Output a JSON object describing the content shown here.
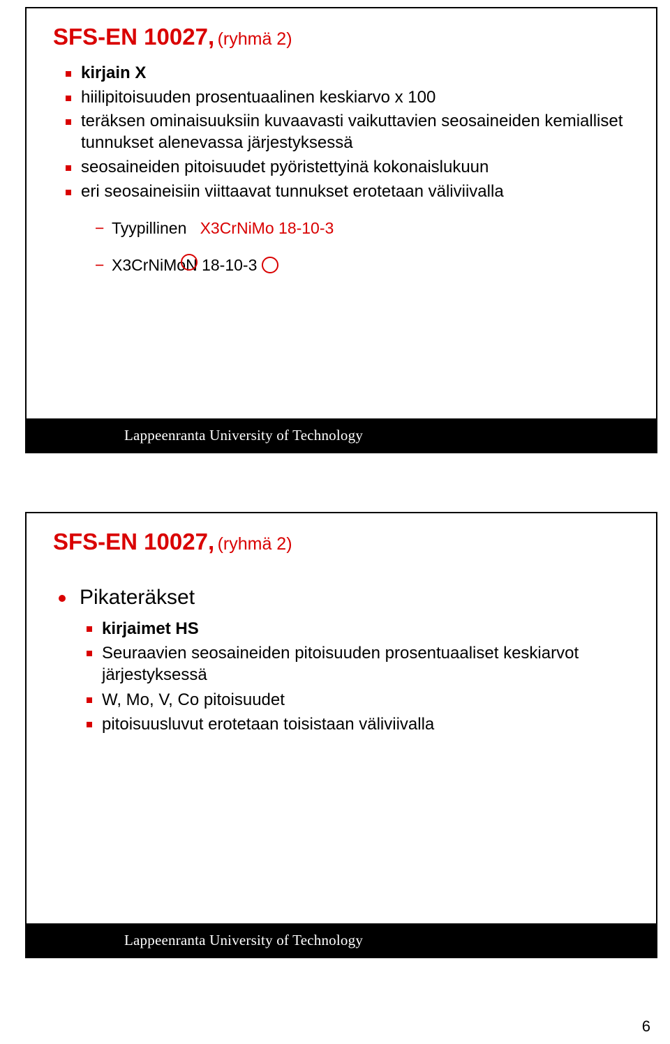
{
  "footer_text": "Lappeenranta University of Technology",
  "page_number": "6",
  "colors": {
    "accent": "#d90000",
    "text": "#000000",
    "footer_bg": "#000000",
    "footer_text": "#ffffff",
    "page_bg": "#ffffff"
  },
  "slide1": {
    "title_main": "SFS-EN 10027,",
    "title_sub": "(ryhmä 2)",
    "bullets": [
      {
        "text": "kirjain X",
        "bold": true
      },
      {
        "text": "hiilipitoisuuden prosentuaalinen keskiarvo x 100",
        "bold": false
      },
      {
        "text": "teräksen ominaisuuksiin kuvaavasti vaikuttavien seosaineiden kemialliset tunnukset alenevassa järjestyksessä",
        "bold": false
      },
      {
        "text": "seosaineiden pitoisuudet pyöristettyinä kokonaislukuun",
        "bold": false
      },
      {
        "text": "eri seosaineisiin viittaavat tunnukset erotetaan väliviivalla",
        "bold": false
      }
    ],
    "example_label": "Tyypillinen",
    "example_code": "X3CrNiMo 18-10-3",
    "annotated_prefix": "X3CrNiMo",
    "annotated_N": "N",
    "annotated_suffix": "18-10-3"
  },
  "slide2": {
    "title_main": "SFS-EN 10027,",
    "title_sub": "(ryhmä 2)",
    "lead": "Pikateräkset",
    "bullets": [
      {
        "text": "kirjaimet HS",
        "bold": true
      },
      {
        "text": "Seuraavien seosaineiden pitoisuuden prosentuaaliset keskiarvot järjestyksessä",
        "bold": false
      },
      {
        "text": "W, Mo, V, Co pitoisuudet",
        "bold": false
      },
      {
        "text": "pitoisuusluvut erotetaan toisistaan väliviivalla",
        "bold": false
      }
    ]
  }
}
